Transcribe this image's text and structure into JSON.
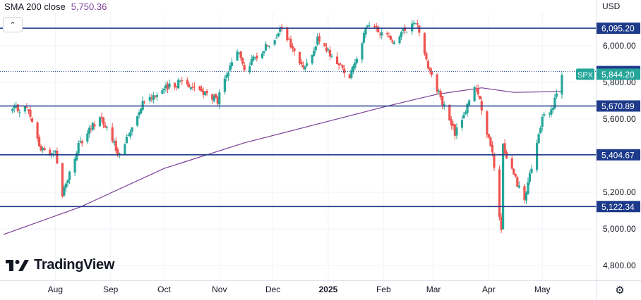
{
  "legend": {
    "label": "SMA 200 close",
    "value": "5,750.36"
  },
  "currency": "USD",
  "brand": "TradingView",
  "icons": {
    "collapse": "chevron-up-icon",
    "settings": "gear-icon",
    "logo": "tradingview-logo-icon"
  },
  "colors": {
    "up": "#26a69a",
    "down": "#ef5350",
    "level": "#1e3a8a",
    "sma": "#7b3f98",
    "axis_text": "#131722"
  },
  "chart_data": {
    "type": "candlestick",
    "symbol": "SPX",
    "last_price": "5,844.20",
    "ylim": [
      4720,
      6180
    ],
    "y_ticks": [
      {
        "value": 6000,
        "label": "6,000.00"
      },
      {
        "value": 5800,
        "label": "5,800.00"
      },
      {
        "value": 5600,
        "label": "5,600.00"
      },
      {
        "value": 5200,
        "label": "5,200.00"
      },
      {
        "value": 5000,
        "label": "5,000.00"
      },
      {
        "value": 4800,
        "label": "4,800.00"
      }
    ],
    "x_ticks": [
      {
        "label": "Aug",
        "date": "2024-08-01",
        "bold": false
      },
      {
        "label": "Sep",
        "date": "2024-09-01",
        "bold": false
      },
      {
        "label": "Oct",
        "date": "2024-10-01",
        "bold": false
      },
      {
        "label": "Nov",
        "date": "2024-11-01",
        "bold": false
      },
      {
        "label": "Dec",
        "date": "2024-12-01",
        "bold": false
      },
      {
        "label": "2025",
        "date": "2025-01-01",
        "bold": true
      },
      {
        "label": "Feb",
        "date": "2025-02-01",
        "bold": false
      },
      {
        "label": "Mar",
        "date": "2025-03-01",
        "bold": false
      },
      {
        "label": "Apr",
        "date": "2025-04-01",
        "bold": false
      },
      {
        "label": "May",
        "date": "2025-05-01",
        "bold": false
      }
    ],
    "levels": [
      {
        "value": 6095.2,
        "label": "6,095.20",
        "style": "solid"
      },
      {
        "value": 5858.83,
        "label": "5,858.83",
        "style": "dotted"
      },
      {
        "value": 5670.89,
        "label": "5,670.89",
        "style": "solid"
      },
      {
        "value": 5404.67,
        "label": "5,404.67",
        "style": "solid"
      },
      {
        "value": 5122.34,
        "label": "5,122.34",
        "style": "solid"
      }
    ],
    "close_path": [
      {
        "date": "2024-07-08",
        "close": 5650
      },
      {
        "date": "2024-07-16",
        "close": 5660
      },
      {
        "date": "2024-07-24",
        "close": 5430
      },
      {
        "date": "2024-08-01",
        "close": 5420
      },
      {
        "date": "2024-08-05",
        "close": 5190
      },
      {
        "date": "2024-08-14",
        "close": 5450
      },
      {
        "date": "2024-08-26",
        "close": 5620
      },
      {
        "date": "2024-09-06",
        "close": 5400
      },
      {
        "date": "2024-09-19",
        "close": 5700
      },
      {
        "date": "2024-10-11",
        "close": 5810
      },
      {
        "date": "2024-10-31",
        "close": 5700
      },
      {
        "date": "2024-11-11",
        "close": 5980
      },
      {
        "date": "2024-11-15",
        "close": 5870
      },
      {
        "date": "2024-12-06",
        "close": 6090
      },
      {
        "date": "2024-12-18",
        "close": 5870
      },
      {
        "date": "2024-12-26",
        "close": 6030
      },
      {
        "date": "2025-01-13",
        "close": 5830
      },
      {
        "date": "2025-01-23",
        "close": 6110
      },
      {
        "date": "2025-02-07",
        "close": 6030
      },
      {
        "date": "2025-02-19",
        "close": 6140
      },
      {
        "date": "2025-02-27",
        "close": 5860
      },
      {
        "date": "2025-03-13",
        "close": 5520
      },
      {
        "date": "2025-03-25",
        "close": 5780
      },
      {
        "date": "2025-04-03",
        "close": 5400
      },
      {
        "date": "2025-04-08",
        "close": 4990
      },
      {
        "date": "2025-04-09",
        "close": 5450
      },
      {
        "date": "2025-04-21",
        "close": 5150
      },
      {
        "date": "2025-05-01",
        "close": 5600
      },
      {
        "date": "2025-05-07",
        "close": 5660
      },
      {
        "date": "2025-05-12",
        "close": 5844
      }
    ],
    "sma_200": [
      {
        "date": "2024-07-03",
        "value": 4970
      },
      {
        "date": "2024-08-15",
        "value": 5120
      },
      {
        "date": "2024-10-01",
        "value": 5330
      },
      {
        "date": "2024-11-15",
        "value": 5470
      },
      {
        "date": "2025-01-02",
        "value": 5590
      },
      {
        "date": "2025-02-03",
        "value": 5670
      },
      {
        "date": "2025-03-03",
        "value": 5735
      },
      {
        "date": "2025-03-28",
        "value": 5770
      },
      {
        "date": "2025-04-15",
        "value": 5745
      },
      {
        "date": "2025-05-12",
        "value": 5750
      }
    ],
    "range": {
      "start": "2024-07-01",
      "end": "2025-05-31"
    },
    "grid": true
  }
}
